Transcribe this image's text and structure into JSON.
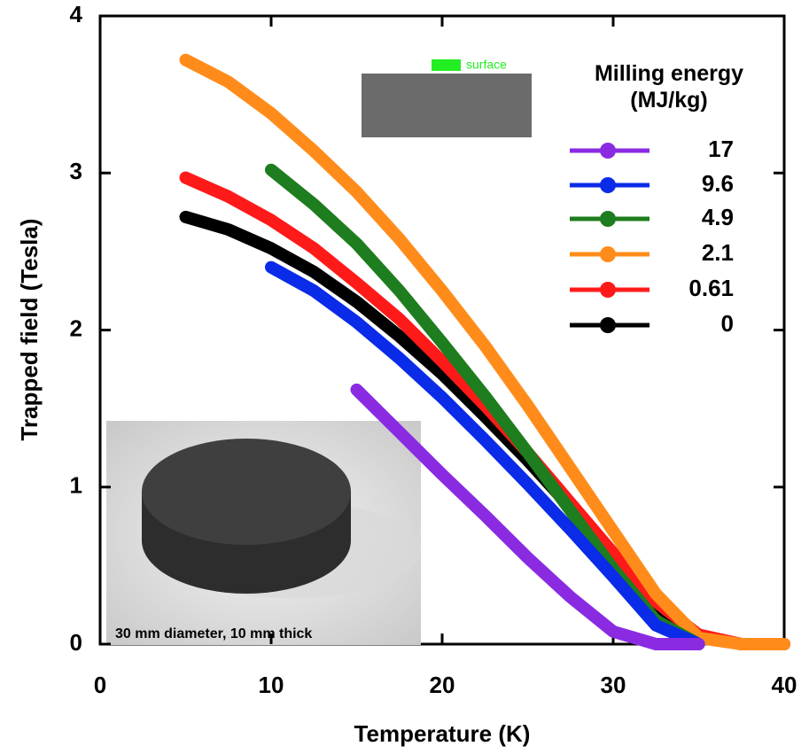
{
  "chart_data": {
    "type": "line",
    "x_label": "Temperature (K)",
    "y_label": "Trapped field (Tesla)",
    "legend_title": "Milling energy (MJ/kg)",
    "legend_position": "upper right",
    "inset_label": "surface",
    "photo_caption": "30 mm diameter, 10 mm thick",
    "xlim": [
      0,
      40
    ],
    "ylim": [
      0,
      4
    ],
    "xticks": [
      0,
      10,
      20,
      30,
      40
    ],
    "yticks": [
      0,
      1,
      2,
      3,
      4
    ],
    "x": [
      5,
      7.5,
      10,
      12.5,
      15,
      17.5,
      20,
      22.5,
      25,
      27.5,
      30,
      32.5,
      35,
      37.5,
      40
    ],
    "series": [
      {
        "name": "17",
        "color": "#8a2be2",
        "values": [
          null,
          null,
          null,
          null,
          1.62,
          1.35,
          1.08,
          0.82,
          0.55,
          0.3,
          0.08,
          0,
          0,
          null,
          null
        ]
      },
      {
        "name": "9.6",
        "color": "#0a2be8",
        "values": [
          null,
          null,
          2.4,
          2.25,
          2.05,
          1.82,
          1.57,
          1.3,
          1.02,
          0.73,
          0.43,
          0.12,
          0,
          null,
          null
        ]
      },
      {
        "name": "4.9",
        "color": "#1e7d1e",
        "values": [
          null,
          null,
          3.02,
          2.8,
          2.55,
          2.25,
          1.92,
          1.58,
          1.22,
          0.85,
          0.48,
          0.15,
          0,
          null,
          null
        ]
      },
      {
        "name": "2.1",
        "color": "#ff8c1a",
        "values": [
          3.72,
          3.58,
          3.38,
          3.14,
          2.88,
          2.58,
          2.25,
          1.9,
          1.52,
          1.12,
          0.72,
          0.32,
          0.04,
          0,
          0
        ]
      },
      {
        "name": "0.61",
        "color": "#ff1a1a",
        "values": [
          2.97,
          2.85,
          2.7,
          2.52,
          2.3,
          2.07,
          1.8,
          1.52,
          1.22,
          0.9,
          0.58,
          0.27,
          0.06,
          0,
          0
        ]
      },
      {
        "name": "0",
        "color": "#000000",
        "values": [
          2.72,
          2.64,
          2.52,
          2.37,
          2.18,
          1.96,
          1.72,
          1.45,
          1.17,
          0.87,
          0.55,
          0.25,
          0.05,
          0,
          0
        ]
      }
    ]
  }
}
